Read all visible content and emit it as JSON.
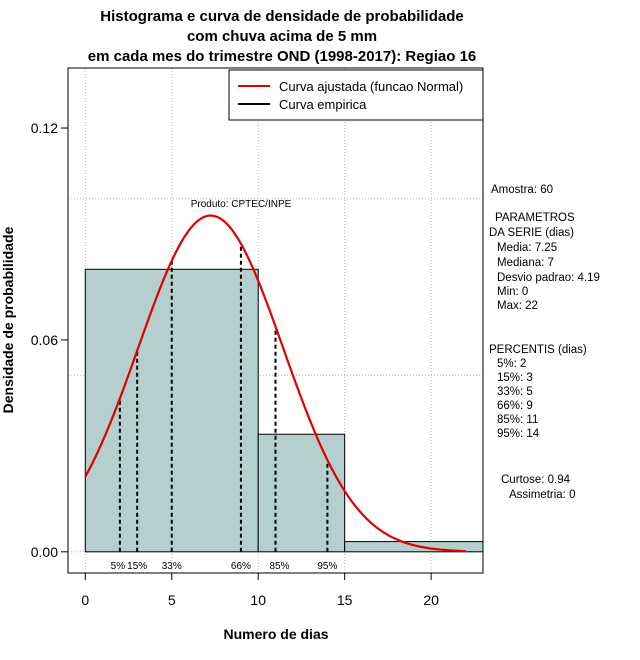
{
  "chart_data": {
    "type": "bar",
    "title_lines": [
      "Histograma e curva de densidade de probabilidade",
      "com chuva acima de 5 mm",
      "em cada mes do trimestre OND (1998-2017): Regiao 16"
    ],
    "xlabel": "Numero de dias",
    "ylabel": "Densidade de probabilidade",
    "xlim": [
      -1,
      23
    ],
    "ylim": [
      -0.006,
      0.137
    ],
    "x_ticks": [
      0,
      5,
      10,
      15,
      20
    ],
    "x_tick_labels": [
      "0",
      "5",
      "10",
      "15",
      "20"
    ],
    "y_ticks": [
      0.0,
      0.06,
      0.12
    ],
    "y_tick_labels": [
      "0.00",
      "0.06",
      "0.12"
    ],
    "gridlines_x": [
      0,
      5,
      10,
      15,
      20
    ],
    "gridlines_y": [
      0.0,
      0.05,
      0.1
    ],
    "bins": [
      {
        "start": 0,
        "end": 10,
        "density": 0.08
      },
      {
        "start": 10,
        "end": 15,
        "density": 0.0333
      },
      {
        "start": 15,
        "end": 23,
        "density": 0.0029
      }
    ],
    "normal_fit": {
      "mean": 7.25,
      "sd": 4.19,
      "x_start": 0,
      "x_end": 22,
      "color": "#e00000"
    },
    "bar_color": "#b5cece",
    "percentile_markers": [
      {
        "label": "5%",
        "x": 2
      },
      {
        "label": "15%",
        "x": 3
      },
      {
        "label": "33%",
        "x": 5
      },
      {
        "label": "66%",
        "x": 9
      },
      {
        "label": "85%",
        "x": 11
      },
      {
        "label": "95%",
        "x": 14
      }
    ],
    "legend": {
      "position": "top-right",
      "items": [
        {
          "label": "Curva ajustada (funcao Normal)",
          "color": "#e00000"
        },
        {
          "label": "Curva empirica",
          "color": "#000000"
        }
      ]
    },
    "annotation": "Produto: CPTEC/INPE"
  },
  "side_panel": {
    "amostra": "Amostra: 60",
    "parametros_lines": [
      "PARAMETROS",
      "DA SERIE (dias)",
      "Media: 7.25",
      "Mediana: 7",
      "Desvio padrao: 4.19",
      "Min: 0",
      "Max: 22"
    ],
    "percentis_lines": [
      "PERCENTIS (dias)",
      "5%: 2",
      "15%: 3",
      "33%: 5",
      "66%: 9",
      "85%: 11",
      "95%: 14"
    ],
    "curtose": "Curtose: 0.94",
    "assimetria": "Assimetria: 0"
  }
}
